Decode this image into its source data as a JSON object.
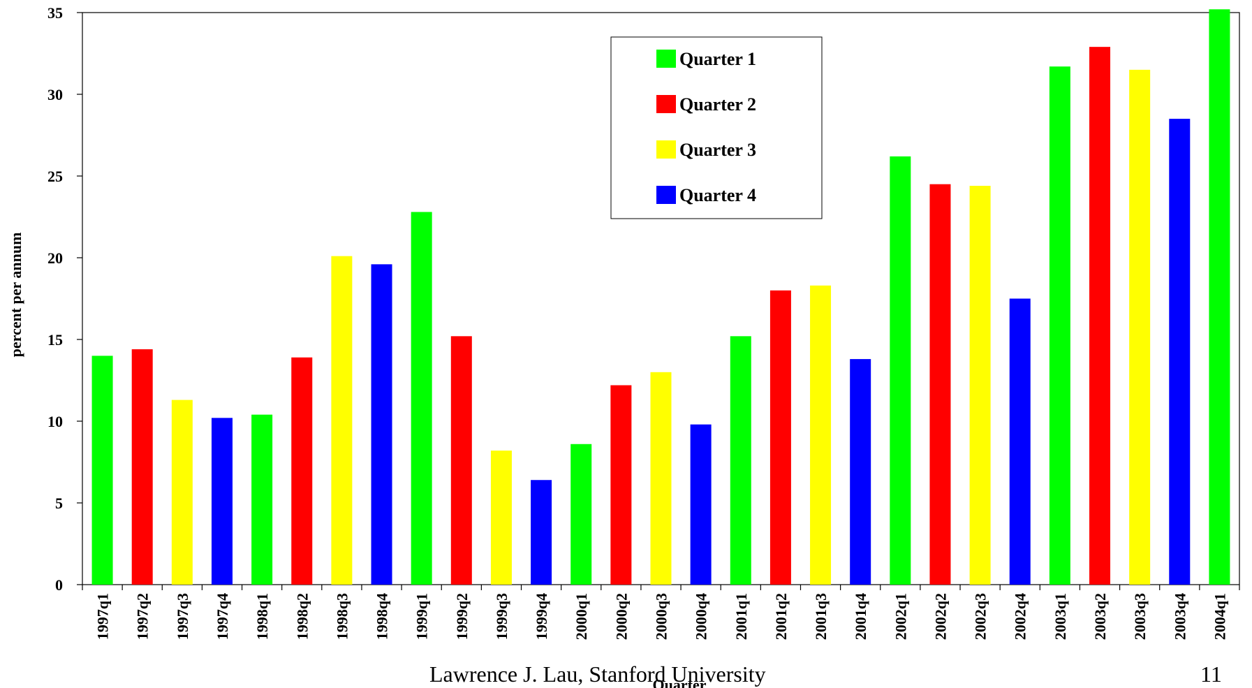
{
  "chart_data": {
    "type": "bar",
    "xlabel": "Quarter",
    "ylabel": "percent per annum",
    "ylim": [
      0,
      35
    ],
    "yticks": [
      0,
      5,
      10,
      15,
      20,
      25,
      30,
      35
    ],
    "grid": false,
    "legend_position": "top-center",
    "categories": [
      "1997q1",
      "1997q2",
      "1997q3",
      "1997q4",
      "1998q1",
      "1998q2",
      "1998q3",
      "1998q4",
      "1999q1",
      "1999q2",
      "1999q3",
      "1999q4",
      "2000q1",
      "2000q2",
      "2000q3",
      "2000q4",
      "2001q1",
      "2001q2",
      "2001q3",
      "2001q4",
      "2002q1",
      "2002q2",
      "2002q3",
      "2002q4",
      "2003q1",
      "2003q2",
      "2003q3",
      "2003q4",
      "2004q1"
    ],
    "values": [
      14.0,
      14.4,
      11.3,
      10.2,
      10.4,
      13.9,
      20.1,
      19.6,
      22.8,
      15.2,
      8.2,
      6.4,
      8.6,
      12.2,
      13.0,
      9.8,
      15.2,
      18.0,
      18.3,
      13.8,
      26.2,
      24.5,
      24.4,
      17.5,
      31.7,
      32.9,
      31.5,
      28.5,
      35.2
    ],
    "series": [
      {
        "name": "Quarter 1",
        "color": "#00ff00"
      },
      {
        "name": "Quarter 2",
        "color": "#ff0000"
      },
      {
        "name": "Quarter 3",
        "color": "#ffff00"
      },
      {
        "name": "Quarter 4",
        "color": "#0000ff"
      }
    ]
  },
  "footer": {
    "author": "Lawrence J. Lau, Stanford University",
    "page_number": "11"
  }
}
